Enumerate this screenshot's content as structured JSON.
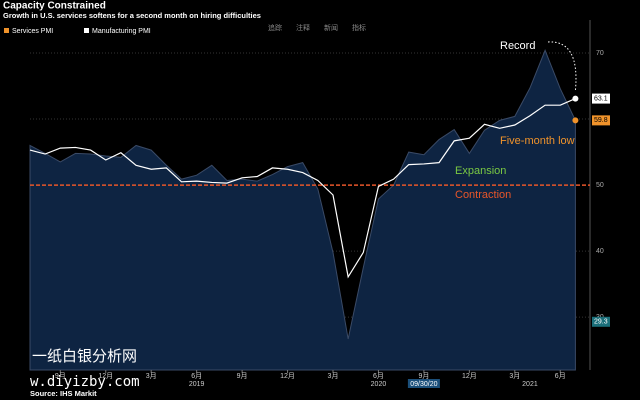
{
  "chart_data": {
    "type": "area-line",
    "title": "Capacity Constrained",
    "subtitle": "Growth in U.S. services softens for a second month on hiring difficulties",
    "toolbar": [
      "追踪",
      "注释",
      "新闻",
      "指标"
    ],
    "categories": [
      null,
      null,
      "9月",
      null,
      null,
      "12月",
      null,
      null,
      "3月",
      null,
      null,
      "6月",
      null,
      null,
      "9月",
      null,
      null,
      "12月",
      null,
      null,
      "3月",
      null,
      null,
      "6月",
      null,
      null,
      "9月",
      null,
      null,
      "12月",
      null,
      null,
      "3月",
      null,
      null,
      "6月",
      null
    ],
    "years": [
      "2019",
      "2020",
      "2021"
    ],
    "series": [
      {
        "name": "Services PMI",
        "color": "#f0932b",
        "values": [
          56.0,
          54.8,
          53.5,
          54.8,
          54.7,
          54.4,
          54.2,
          56.0,
          55.3,
          53.0,
          50.9,
          51.5,
          53.0,
          50.7,
          50.9,
          50.6,
          51.6,
          52.8,
          53.4,
          49.4,
          39.8,
          26.7,
          37.5,
          47.9,
          50.0,
          55.0,
          54.6,
          56.9,
          58.4,
          54.8,
          58.3,
          59.8,
          60.4,
          64.7,
          70.4,
          64.6,
          59.8
        ]
      },
      {
        "name": "Manufacturing PMI",
        "color": "#ffffff",
        "values": [
          55.3,
          54.7,
          55.6,
          55.7,
          55.3,
          53.8,
          54.9,
          53.0,
          52.4,
          52.6,
          50.5,
          50.6,
          50.4,
          50.3,
          51.1,
          51.3,
          52.6,
          52.4,
          51.9,
          50.7,
          48.5,
          36.1,
          39.8,
          49.8,
          50.9,
          53.1,
          53.2,
          53.4,
          56.7,
          57.1,
          59.2,
          58.6,
          59.1,
          60.5,
          62.1,
          62.1,
          63.1
        ]
      }
    ],
    "ylim": [
      22,
      75
    ],
    "yticks": [
      30,
      40,
      50,
      60,
      70
    ],
    "reference_line": 50,
    "extra_tag": 29.3,
    "cursor_date": "09/30/20",
    "annotations": [
      "Record",
      "Five-month low",
      "Expansion",
      "Contraction"
    ],
    "source": "Source: IHS Markit",
    "watermark": [
      "一纸白银分析网",
      "w.diyizby.com"
    ]
  }
}
